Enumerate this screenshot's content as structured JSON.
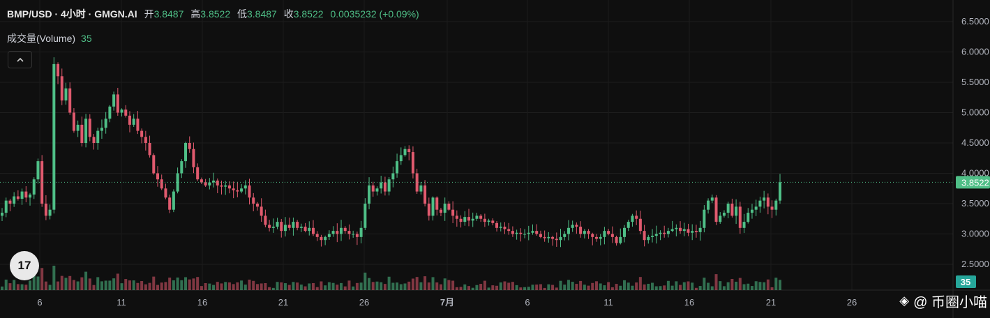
{
  "legend": {
    "symbol": "BMP/USD · 4小时 · GMGN.AI",
    "open_label": "开",
    "open": "3.8487",
    "high_label": "高",
    "high": "3.8522",
    "low_label": "低",
    "low": "3.8487",
    "close_label": "收",
    "close": "3.8522",
    "change": "0.0035232 (+0.09%)"
  },
  "volume_legend": {
    "label": "成交量(Volume)",
    "value": "35"
  },
  "collapse_icon": "chevron-up-icon",
  "logo_text": "17",
  "watermark": {
    "icon": "binance-diamond-icon",
    "text": "@ 币圈小喵"
  },
  "colors": {
    "up": "#4fbf87",
    "down": "#e05a6e",
    "background": "#0f0f0f"
  },
  "chart_data": {
    "type": "candlestick",
    "ylim": [
      2.3,
      6.6
    ],
    "y_ticks": [
      "6.5000",
      "6.0000",
      "5.5000",
      "5.0000",
      "4.5000",
      "4.0000",
      "3.5000",
      "3.0000",
      "2.5000"
    ],
    "x_tick_labels": [
      "6",
      "11",
      "16",
      "21",
      "26",
      "7月",
      "6",
      "11",
      "16",
      "21",
      "26"
    ],
    "last_price_label": "3.8522",
    "last_volume_label": "35",
    "grid": true,
    "close_series": [
      3.35,
      3.55,
      3.5,
      3.62,
      3.58,
      3.7,
      3.6,
      3.65,
      3.9,
      4.2,
      3.5,
      3.3,
      3.4,
      5.8,
      5.6,
      5.2,
      5.4,
      5.0,
      4.7,
      4.8,
      4.5,
      4.9,
      4.6,
      4.5,
      4.7,
      4.75,
      4.9,
      5.1,
      5.3,
      5.0,
      5.05,
      4.95,
      4.8,
      4.9,
      4.7,
      4.6,
      4.5,
      4.3,
      4.0,
      3.9,
      3.75,
      3.6,
      3.4,
      3.7,
      4.0,
      4.2,
      4.5,
      4.4,
      4.1,
      3.9,
      3.85,
      3.8,
      3.85,
      3.88,
      3.8,
      3.78,
      3.8,
      3.75,
      3.72,
      3.7,
      3.75,
      3.8,
      3.6,
      3.5,
      3.45,
      3.3,
      3.15,
      3.1,
      3.12,
      3.2,
      3.05,
      3.15,
      3.1,
      3.2,
      3.1,
      3.12,
      3.05,
      3.1,
      3.0,
      2.95,
      2.9,
      2.95,
      3.0,
      3.05,
      3.0,
      3.1,
      3.05,
      3.0,
      3.0,
      2.95,
      3.1,
      3.5,
      3.8,
      3.7,
      3.75,
      3.85,
      3.7,
      3.9,
      4.0,
      4.2,
      4.3,
      4.4,
      4.35,
      4.0,
      3.7,
      3.8,
      3.5,
      3.3,
      3.6,
      3.4,
      3.35,
      3.5,
      3.4,
      3.3,
      3.25,
      3.2,
      3.28,
      3.22,
      3.25,
      3.3,
      3.25,
      3.2,
      3.22,
      3.18,
      3.1,
      3.12,
      3.08,
      3.05,
      3.0,
      3.02,
      3.0,
      3.0,
      3.02,
      3.05,
      3.0,
      2.95,
      2.93,
      2.95,
      2.92,
      2.9,
      2.95,
      3.0,
      3.1,
      3.15,
      3.12,
      3.0,
      3.05,
      3.0,
      2.95,
      2.92,
      2.95,
      3.05,
      3.0,
      2.95,
      2.85,
      2.95,
      3.1,
      3.2,
      3.3,
      3.25,
      3.05,
      2.9,
      2.95,
      2.97,
      3.0,
      3.02,
      3.0,
      3.05,
      3.08,
      3.1,
      3.05,
      3.08,
      3.02,
      3.05,
      3.03,
      3.1,
      3.4,
      3.55,
      3.6,
      3.2,
      3.3,
      3.35,
      3.5,
      3.3,
      3.45,
      3.1,
      3.2,
      3.35,
      3.4,
      3.45,
      3.55,
      3.6,
      3.45,
      3.4,
      3.55,
      3.8522
    ]
  }
}
